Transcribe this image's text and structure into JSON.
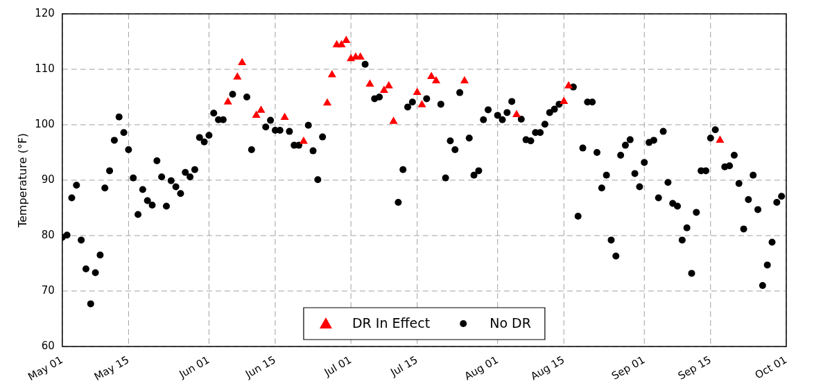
{
  "chart_data": {
    "type": "scatter",
    "ylabel": "Temperature (°F)",
    "xlim": [
      "--05-01",
      "--10-01"
    ],
    "xticks": [
      {
        "value": "--05-01",
        "label": "May 01"
      },
      {
        "value": "--05-15",
        "label": "May 15"
      },
      {
        "value": "--06-01",
        "label": "Jun 01"
      },
      {
        "value": "--06-15",
        "label": "Jun 15"
      },
      {
        "value": "--07-01",
        "label": "Jul 01"
      },
      {
        "value": "--07-15",
        "label": "Jul 15"
      },
      {
        "value": "--08-01",
        "label": "Aug 01"
      },
      {
        "value": "--08-15",
        "label": "Aug 15"
      },
      {
        "value": "--09-01",
        "label": "Sep 01"
      },
      {
        "value": "--09-15",
        "label": "Sep 15"
      },
      {
        "value": "--10-01",
        "label": "Oct 01"
      }
    ],
    "ylim": [
      60,
      120
    ],
    "yticks": [
      60,
      70,
      80,
      90,
      100,
      110,
      120
    ],
    "grid": true,
    "legend": "bottom",
    "series": [
      {
        "name": "DR In Effect",
        "color": "#ff0000",
        "marker": "triangle",
        "x": [
          "--06-05",
          "--06-07",
          "--06-08",
          "--06-11",
          "--06-12",
          "--06-17",
          "--06-21",
          "--06-26",
          "--06-27",
          "--06-28",
          "--06-29",
          "--06-30",
          "--07-01",
          "--07-02",
          "--07-03",
          "--07-05",
          "--07-08",
          "--07-09",
          "--07-10",
          "--07-15",
          "--07-16",
          "--07-18",
          "--07-19",
          "--07-25",
          "--08-05",
          "--08-15",
          "--08-16",
          "--09-17"
        ],
        "values": [
          104.1,
          108.6,
          111.2,
          101.7,
          102.6,
          101.3,
          97.0,
          103.9,
          109.0,
          114.4,
          114.4,
          115.2,
          111.9,
          112.2,
          112.2,
          107.3,
          106.2,
          107.0,
          100.6,
          105.8,
          103.6,
          108.7,
          107.9,
          107.9,
          101.8,
          104.2,
          107.0,
          97.2
        ]
      },
      {
        "name": "No DR",
        "color": "#000000",
        "marker": "circle",
        "x": [
          "--05-01",
          "--05-02",
          "--05-03",
          "--05-04",
          "--05-05",
          "--05-06",
          "--05-07",
          "--05-08",
          "--05-09",
          "--05-10",
          "--05-11",
          "--05-12",
          "--05-13",
          "--05-14",
          "--05-15",
          "--05-16",
          "--05-17",
          "--05-18",
          "--05-19",
          "--05-20",
          "--05-21",
          "--05-22",
          "--05-23",
          "--05-24",
          "--05-25",
          "--05-26",
          "--05-27",
          "--05-28",
          "--05-29",
          "--05-30",
          "--05-31",
          "--06-01",
          "--06-02",
          "--06-03",
          "--06-04",
          "--06-06",
          "--06-09",
          "--06-10",
          "--06-13",
          "--06-14",
          "--06-15",
          "--06-16",
          "--06-18",
          "--06-19",
          "--06-20",
          "--06-22",
          "--06-23",
          "--06-24",
          "--06-25",
          "--07-04",
          "--07-06",
          "--07-07",
          "--07-11",
          "--07-12",
          "--07-13",
          "--07-14",
          "--07-17",
          "--07-20",
          "--07-21",
          "--07-22",
          "--07-23",
          "--07-24",
          "--07-26",
          "--07-27",
          "--07-28",
          "--07-29",
          "--07-30",
          "--08-01",
          "--08-02",
          "--08-03",
          "--08-04",
          "--08-06",
          "--08-07",
          "--08-08",
          "--08-09",
          "--08-10",
          "--08-11",
          "--08-12",
          "--08-13",
          "--08-14",
          "--08-17",
          "--08-18",
          "--08-19",
          "--08-20",
          "--08-21",
          "--08-22",
          "--08-23",
          "--08-24",
          "--08-25",
          "--08-26",
          "--08-27",
          "--08-28",
          "--08-29",
          "--08-30",
          "--08-31",
          "--09-01",
          "--09-02",
          "--09-03",
          "--09-04",
          "--09-05",
          "--09-06",
          "--09-07",
          "--09-08",
          "--09-09",
          "--09-10",
          "--09-11",
          "--09-12",
          "--09-13",
          "--09-14",
          "--09-15",
          "--09-16",
          "--09-18",
          "--09-19",
          "--09-20",
          "--09-21",
          "--09-22",
          "--09-23",
          "--09-24",
          "--09-25",
          "--09-26",
          "--09-27",
          "--09-28",
          "--09-29",
          "--09-30"
        ],
        "values": [
          79.7,
          80.1,
          86.8,
          89.1,
          79.2,
          74.0,
          67.7,
          73.3,
          76.5,
          88.6,
          91.7,
          97.2,
          101.4,
          98.6,
          95.5,
          90.4,
          83.8,
          88.3,
          86.3,
          85.5,
          93.5,
          90.6,
          85.3,
          89.9,
          88.8,
          87.6,
          91.4,
          90.6,
          91.9,
          97.7,
          96.9,
          98.1,
          102.1,
          100.9,
          100.9,
          105.5,
          105.0,
          95.5,
          99.6,
          100.8,
          99.0,
          99.0,
          98.8,
          96.3,
          96.3,
          99.9,
          95.3,
          90.1,
          97.8,
          110.9,
          104.7,
          105.0,
          86.0,
          91.9,
          103.2,
          104.1,
          104.7,
          103.7,
          90.4,
          97.1,
          95.5,
          105.8,
          97.6,
          90.9,
          91.7,
          100.9,
          102.7,
          101.7,
          100.9,
          102.2,
          104.2,
          101.0,
          97.3,
          97.1,
          98.6,
          98.6,
          100.1,
          102.2,
          102.8,
          103.7,
          106.8,
          83.5,
          95.8,
          104.1,
          104.1,
          95.0,
          88.6,
          90.9,
          79.2,
          76.3,
          94.5,
          96.3,
          97.3,
          91.2,
          88.8,
          93.2,
          96.8,
          97.2,
          86.8,
          98.8,
          89.6,
          85.8,
          85.3,
          79.2,
          81.4,
          73.2,
          84.2,
          91.7,
          91.7,
          97.6,
          99.1,
          92.4,
          92.6,
          94.5,
          89.4,
          81.2,
          86.5,
          90.9,
          84.7,
          71.0,
          74.7,
          78.8,
          86.0,
          87.1
        ]
      }
    ]
  }
}
